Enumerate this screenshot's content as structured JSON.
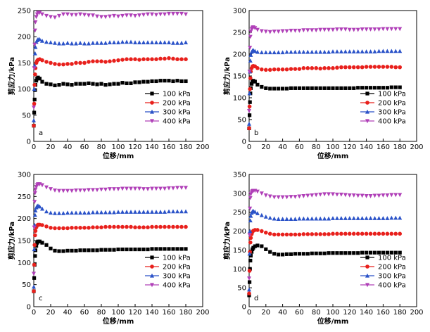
{
  "chart_data": [
    {
      "type": "scatter",
      "panel_label": "a",
      "xlabel": "位移/mm",
      "ylabel": "剪应力/kPa",
      "xlim": [
        0,
        200
      ],
      "ylim": [
        0,
        250
      ],
      "xticks": [
        0,
        20,
        40,
        60,
        80,
        100,
        120,
        140,
        160,
        180,
        200
      ],
      "yticks": [
        0,
        50,
        100,
        150,
        200,
        250
      ],
      "legend_position": "middle-right",
      "x": [
        0,
        0.5,
        1,
        1.5,
        2,
        3,
        4,
        5,
        7,
        10,
        15,
        20,
        25,
        30,
        35,
        40,
        45,
        50,
        55,
        60,
        65,
        70,
        75,
        80,
        85,
        90,
        95,
        100,
        105,
        110,
        115,
        120,
        125,
        130,
        135,
        140,
        145,
        150,
        155,
        160,
        165,
        170,
        175,
        180
      ],
      "series": [
        {
          "name": "100 kPa",
          "color": "#000000",
          "marker": "square",
          "values": [
            30,
            55,
            80,
            98,
            108,
            116,
            120,
            122,
            120,
            114,
            110,
            109,
            107,
            108,
            110,
            109,
            108,
            110,
            110,
            110,
            111,
            110,
            109,
            110,
            108,
            109,
            110,
            110,
            112,
            111,
            111,
            113,
            113,
            114,
            114,
            115,
            115,
            116,
            116,
            116,
            115,
            116,
            115,
            115
          ]
        },
        {
          "name": "200 kPa",
          "color": "#e8201c",
          "marker": "circle",
          "values": [
            30,
            72,
            108,
            128,
            140,
            150,
            154,
            156,
            157,
            155,
            152,
            150,
            148,
            147,
            147,
            148,
            148,
            150,
            150,
            150,
            152,
            153,
            153,
            153,
            152,
            153,
            154,
            155,
            156,
            157,
            157,
            157,
            156,
            157,
            157,
            157,
            157,
            158,
            158,
            159,
            158,
            157,
            157,
            157
          ]
        },
        {
          "name": "300 kPa",
          "color": "#2a52c8",
          "marker": "triangle-up",
          "values": [
            40,
            100,
            145,
            168,
            180,
            190,
            193,
            195,
            195,
            192,
            190,
            189,
            188,
            187,
            187,
            188,
            187,
            187,
            188,
            187,
            187,
            188,
            188,
            188,
            188,
            189,
            189,
            189,
            190,
            190,
            190,
            189,
            189,
            189,
            189,
            189,
            189,
            189,
            189,
            189,
            188,
            188,
            188,
            189
          ]
        },
        {
          "name": "400 kPa",
          "color": "#b040b8",
          "marker": "triangle-down",
          "values": [
            65,
            140,
            185,
            212,
            228,
            238,
            243,
            246,
            246,
            243,
            240,
            238,
            237,
            240,
            243,
            243,
            242,
            242,
            243,
            242,
            241,
            241,
            239,
            238,
            238,
            239,
            240,
            239,
            240,
            241,
            241,
            240,
            241,
            242,
            243,
            243,
            242,
            243,
            243,
            244,
            244,
            244,
            244,
            243
          ]
        }
      ]
    },
    {
      "type": "scatter",
      "panel_label": "b",
      "xlabel": "位移/mm",
      "ylabel": "剪应力/kPa",
      "xlim": [
        0,
        200
      ],
      "ylim": [
        0,
        300
      ],
      "xticks": [
        0,
        20,
        40,
        60,
        80,
        100,
        120,
        140,
        160,
        180,
        200
      ],
      "yticks": [
        0,
        50,
        100,
        150,
        200,
        250,
        300
      ],
      "legend_position": "middle-right",
      "x": [
        0,
        0.5,
        1,
        1.5,
        2,
        3,
        4,
        5,
        7,
        10,
        15,
        20,
        25,
        30,
        35,
        40,
        45,
        50,
        55,
        60,
        65,
        70,
        75,
        80,
        85,
        90,
        95,
        100,
        105,
        110,
        115,
        120,
        125,
        130,
        135,
        140,
        145,
        150,
        155,
        160,
        165,
        170,
        175,
        180
      ],
      "series": [
        {
          "name": "100 kPa",
          "color": "#000000",
          "marker": "square",
          "values": [
            30,
            60,
            90,
            110,
            122,
            132,
            137,
            139,
            137,
            130,
            125,
            122,
            121,
            121,
            121,
            121,
            121,
            122,
            122,
            122,
            122,
            122,
            122,
            122,
            122,
            122,
            122,
            122,
            122,
            122,
            122,
            122,
            122,
            123,
            123,
            123,
            123,
            123,
            123,
            123,
            123,
            124,
            124,
            124
          ]
        },
        {
          "name": "200 kPa",
          "color": "#e8201c",
          "marker": "circle",
          "values": [
            30,
            80,
            120,
            145,
            160,
            168,
            172,
            173,
            172,
            168,
            165,
            164,
            164,
            165,
            165,
            165,
            165,
            166,
            166,
            166,
            168,
            168,
            168,
            168,
            167,
            168,
            168,
            168,
            169,
            170,
            170,
            170,
            170,
            170,
            170,
            171,
            171,
            171,
            171,
            171,
            171,
            171,
            170,
            170
          ]
        },
        {
          "name": "300 kPa",
          "color": "#2a52c8",
          "marker": "triangle-up",
          "values": [
            40,
            110,
            160,
            185,
            198,
            205,
            208,
            209,
            207,
            205,
            204,
            204,
            204,
            204,
            204,
            204,
            205,
            205,
            205,
            205,
            205,
            205,
            205,
            205,
            205,
            205,
            205,
            206,
            206,
            206,
            206,
            206,
            206,
            206,
            206,
            206,
            206,
            206,
            207,
            207,
            207,
            207,
            207,
            207
          ]
        },
        {
          "name": "400 kPa",
          "color": "#b040b8",
          "marker": "triangle-down",
          "values": [
            70,
            160,
            215,
            240,
            252,
            258,
            261,
            262,
            260,
            256,
            253,
            252,
            251,
            252,
            252,
            253,
            253,
            254,
            254,
            254,
            255,
            255,
            255,
            255,
            256,
            256,
            256,
            256,
            257,
            257,
            257,
            256,
            256,
            256,
            257,
            257,
            257,
            257,
            257,
            258,
            258,
            258,
            258,
            258
          ]
        }
      ]
    },
    {
      "type": "scatter",
      "panel_label": "c",
      "xlabel": "位移/mm",
      "ylabel": "剪应力/kPa",
      "xlim": [
        0,
        200
      ],
      "ylim": [
        0,
        300
      ],
      "xticks": [
        0,
        20,
        40,
        60,
        80,
        100,
        120,
        140,
        160,
        180,
        200
      ],
      "yticks": [
        0,
        50,
        100,
        150,
        200,
        250,
        300
      ],
      "legend_position": "middle-right",
      "x": [
        0,
        0.5,
        1,
        1.5,
        2,
        3,
        4,
        5,
        7,
        10,
        15,
        20,
        25,
        30,
        35,
        40,
        45,
        50,
        55,
        60,
        65,
        70,
        75,
        80,
        85,
        90,
        95,
        100,
        105,
        110,
        115,
        120,
        125,
        130,
        135,
        140,
        145,
        150,
        155,
        160,
        165,
        170,
        175,
        180
      ],
      "series": [
        {
          "name": "100 kPa",
          "color": "#000000",
          "marker": "square",
          "values": [
            35,
            65,
            95,
            115,
            128,
            138,
            145,
            148,
            148,
            145,
            140,
            132,
            127,
            126,
            126,
            127,
            127,
            127,
            128,
            128,
            128,
            128,
            128,
            129,
            129,
            129,
            129,
            130,
            130,
            130,
            130,
            130,
            130,
            130,
            130,
            131,
            131,
            131,
            131,
            131,
            131,
            131,
            131,
            131
          ]
        },
        {
          "name": "200 kPa",
          "color": "#e8201c",
          "marker": "circle",
          "values": [
            35,
            95,
            140,
            162,
            172,
            180,
            184,
            186,
            186,
            185,
            182,
            179,
            178,
            178,
            178,
            178,
            179,
            179,
            179,
            179,
            179,
            180,
            180,
            180,
            181,
            181,
            181,
            181,
            181,
            181,
            181,
            180,
            180,
            180,
            180,
            181,
            181,
            181,
            181,
            181,
            181,
            181,
            181,
            181
          ]
        },
        {
          "name": "300 kPa",
          "color": "#2a52c8",
          "marker": "triangle-up",
          "values": [
            45,
            130,
            185,
            208,
            218,
            225,
            228,
            229,
            227,
            222,
            216,
            213,
            212,
            212,
            212,
            213,
            213,
            213,
            213,
            213,
            213,
            214,
            214,
            214,
            214,
            214,
            214,
            215,
            215,
            215,
            215,
            215,
            215,
            215,
            215,
            215,
            215,
            215,
            215,
            216,
            216,
            216,
            216,
            216
          ]
        },
        {
          "name": "400 kPa",
          "color": "#b040b8",
          "marker": "triangle-down",
          "values": [
            75,
            180,
            238,
            258,
            266,
            272,
            276,
            278,
            278,
            276,
            271,
            267,
            264,
            263,
            263,
            263,
            263,
            264,
            264,
            264,
            265,
            265,
            265,
            266,
            266,
            267,
            267,
            267,
            268,
            268,
            268,
            268,
            268,
            267,
            267,
            268,
            268,
            268,
            268,
            269,
            269,
            270,
            270,
            270
          ]
        }
      ]
    },
    {
      "type": "scatter",
      "panel_label": "d",
      "xlabel": "位移/mm",
      "ylabel": "剪应力/kPa",
      "xlim": [
        0,
        200
      ],
      "ylim": [
        0,
        350
      ],
      "xticks": [
        0,
        20,
        40,
        60,
        80,
        100,
        120,
        140,
        160,
        180,
        200
      ],
      "yticks": [
        0,
        50,
        100,
        150,
        200,
        250,
        300,
        350
      ],
      "legend_position": "middle-right",
      "x": [
        0,
        0.5,
        1,
        1.5,
        2,
        3,
        4,
        5,
        7,
        10,
        15,
        20,
        25,
        30,
        35,
        40,
        45,
        50,
        55,
        60,
        65,
        70,
        75,
        80,
        85,
        90,
        95,
        100,
        105,
        110,
        115,
        120,
        125,
        130,
        135,
        140,
        145,
        150,
        155,
        160,
        165,
        170,
        175,
        180
      ],
      "series": [
        {
          "name": "100 kPa",
          "color": "#000000",
          "marker": "square",
          "values": [
            30,
            65,
            100,
            122,
            135,
            145,
            152,
            156,
            160,
            162,
            160,
            152,
            145,
            140,
            138,
            138,
            139,
            139,
            140,
            140,
            140,
            140,
            141,
            141,
            141,
            141,
            142,
            142,
            142,
            142,
            142,
            142,
            142,
            142,
            143,
            143,
            143,
            143,
            143,
            143,
            143,
            143,
            143,
            143
          ]
        },
        {
          "name": "200 kPa",
          "color": "#e8201c",
          "marker": "circle",
          "values": [
            35,
            95,
            145,
            170,
            182,
            192,
            198,
            201,
            203,
            203,
            200,
            196,
            193,
            191,
            191,
            191,
            191,
            191,
            191,
            191,
            192,
            192,
            192,
            192,
            192,
            192,
            192,
            193,
            193,
            193,
            193,
            193,
            193,
            193,
            193,
            193,
            193,
            193,
            193,
            193,
            193,
            193,
            193,
            193
          ]
        },
        {
          "name": "300 kPa",
          "color": "#2a52c8",
          "marker": "triangle-up",
          "values": [
            45,
            140,
            200,
            228,
            240,
            248,
            252,
            253,
            251,
            247,
            242,
            238,
            235,
            233,
            232,
            232,
            232,
            232,
            232,
            233,
            233,
            233,
            233,
            233,
            233,
            233,
            233,
            234,
            234,
            234,
            234,
            234,
            234,
            234,
            234,
            234,
            234,
            234,
            234,
            234,
            234,
            235,
            235,
            235
          ]
        },
        {
          "name": "400 kPa",
          "color": "#b040b8",
          "marker": "triangle-down",
          "values": [
            75,
            190,
            260,
            288,
            298,
            303,
            306,
            307,
            307,
            305,
            300,
            295,
            292,
            290,
            290,
            290,
            290,
            291,
            291,
            292,
            293,
            294,
            295,
            296,
            297,
            298,
            298,
            298,
            297,
            297,
            296,
            295,
            295,
            294,
            294,
            293,
            293,
            294,
            294,
            295,
            295,
            296,
            296,
            296
          ]
        }
      ]
    }
  ]
}
